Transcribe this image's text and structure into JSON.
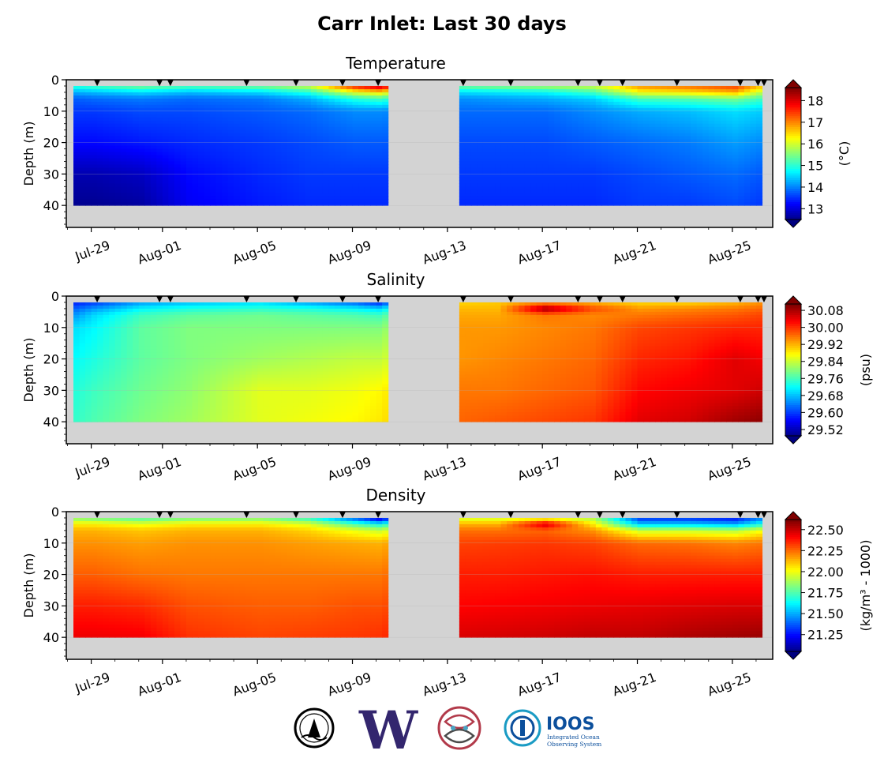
{
  "title": "Carr Inlet: Last 30 days",
  "chart_data": [
    {
      "type": "heatmap",
      "title": "Temperature",
      "ylabel": "Depth (m)",
      "colorbar_label": "(°C)",
      "colorbar_ticks": [
        "18",
        "17",
        "16",
        "15",
        "14",
        "13"
      ],
      "colorbar_range": [
        12.5,
        18.6
      ],
      "colormap": "jet",
      "x_ticks": [
        "Jul-29",
        "Aug-01",
        "Aug-05",
        "Aug-09",
        "Aug-13",
        "Aug-17",
        "Aug-21",
        "Aug-25"
      ],
      "y_ticks": [
        "0",
        "10",
        "20",
        "30",
        "40"
      ],
      "ylim": [
        47,
        0
      ],
      "data_gap": [
        "Aug-10 12:00",
        "Aug-13 07:00"
      ],
      "data_depth_range_m": [
        2,
        40
      ],
      "profiles": {
        "depths_m": [
          2,
          4,
          6,
          10,
          20,
          30,
          40
        ],
        "days": [
          "Jul-28",
          "Jul-29",
          "Jul-31",
          "Aug-02",
          "Aug-05",
          "Aug-07",
          "Aug-09",
          "Aug-10",
          "Aug-13",
          "Aug-15",
          "Aug-17",
          "Aug-19",
          "Aug-21",
          "Aug-23",
          "Aug-25",
          "Aug-26"
        ],
        "values": [
          [
            15.0,
            14.3,
            13.8,
            13.6,
            13.3,
            12.8,
            12.6
          ],
          [
            15.2,
            14.4,
            13.9,
            13.6,
            13.3,
            12.8,
            12.6
          ],
          [
            15.5,
            14.6,
            14.0,
            13.7,
            13.4,
            12.9,
            12.7
          ],
          [
            15.3,
            14.4,
            13.9,
            13.7,
            13.5,
            13.3,
            13.2
          ],
          [
            15.5,
            14.6,
            14.0,
            13.8,
            13.6,
            13.5,
            13.4
          ],
          [
            16.0,
            15.0,
            14.3,
            13.9,
            13.7,
            13.6,
            13.5
          ],
          [
            17.8,
            16.2,
            15.0,
            14.1,
            13.8,
            13.6,
            13.5
          ],
          [
            18.3,
            16.5,
            15.2,
            14.1,
            13.8,
            13.6,
            13.5
          ],
          [
            15.4,
            14.6,
            14.1,
            13.9,
            13.7,
            13.6,
            13.5
          ],
          [
            15.6,
            14.7,
            14.2,
            13.9,
            13.7,
            13.6,
            13.5
          ],
          [
            15.8,
            14.8,
            14.3,
            13.9,
            13.7,
            13.6,
            13.5
          ],
          [
            16.0,
            15.2,
            14.5,
            14.1,
            13.8,
            13.6,
            13.5
          ],
          [
            17.0,
            16.3,
            15.2,
            14.3,
            13.9,
            13.7,
            13.6
          ],
          [
            17.2,
            16.5,
            15.3,
            14.4,
            14.0,
            13.8,
            13.6
          ],
          [
            17.5,
            16.8,
            15.5,
            14.6,
            14.2,
            13.9,
            13.7
          ],
          [
            16.8,
            16.0,
            15.2,
            14.5,
            14.1,
            13.8,
            13.6
          ]
        ]
      }
    },
    {
      "type": "heatmap",
      "title": "Salinity",
      "ylabel": "Depth (m)",
      "colorbar_label": "(psu)",
      "colorbar_ticks": [
        "30.08",
        "30.00",
        "29.92",
        "29.84",
        "29.76",
        "29.68",
        "29.60",
        "29.52"
      ],
      "colorbar_range": [
        29.49,
        30.11
      ],
      "colormap": "jet",
      "x_ticks": [
        "Jul-29",
        "Aug-01",
        "Aug-05",
        "Aug-09",
        "Aug-13",
        "Aug-17",
        "Aug-21",
        "Aug-25"
      ],
      "y_ticks": [
        "0",
        "10",
        "20",
        "30",
        "40"
      ],
      "ylim": [
        47,
        0
      ],
      "data_gap": [
        "Aug-10 12:00",
        "Aug-13 07:00"
      ],
      "data_depth_range_m": [
        2,
        40
      ],
      "profiles": {
        "depths_m": [
          2,
          4,
          6,
          10,
          20,
          30,
          40
        ],
        "days": [
          "Jul-28",
          "Jul-29",
          "Jul-31",
          "Aug-02",
          "Aug-05",
          "Aug-07",
          "Aug-09",
          "Aug-10",
          "Aug-13",
          "Aug-15",
          "Aug-17",
          "Aug-19",
          "Aug-21",
          "Aug-23",
          "Aug-25",
          "Aug-26"
        ],
        "values": [
          [
            29.58,
            29.62,
            29.65,
            29.7,
            29.72,
            29.74,
            29.75
          ],
          [
            29.6,
            29.66,
            29.7,
            29.72,
            29.74,
            29.76,
            29.77
          ],
          [
            29.66,
            29.72,
            29.76,
            29.78,
            29.78,
            29.79,
            29.8
          ],
          [
            29.68,
            29.74,
            29.78,
            29.8,
            29.8,
            29.81,
            29.82
          ],
          [
            29.7,
            29.75,
            29.79,
            29.8,
            29.82,
            29.86,
            29.86
          ],
          [
            29.66,
            29.74,
            29.78,
            29.8,
            29.83,
            29.86,
            29.87
          ],
          [
            29.62,
            29.72,
            29.77,
            29.8,
            29.84,
            29.87,
            29.88
          ],
          [
            29.58,
            29.7,
            29.76,
            29.8,
            29.84,
            29.88,
            29.89
          ],
          [
            29.9,
            29.92,
            29.93,
            29.94,
            29.94,
            29.96,
            29.97
          ],
          [
            29.91,
            29.92,
            29.93,
            29.94,
            29.95,
            29.96,
            29.98
          ],
          [
            29.93,
            30.1,
            29.96,
            29.95,
            29.96,
            29.97,
            29.99
          ],
          [
            29.92,
            29.99,
            29.95,
            29.96,
            29.97,
            29.98,
            30.0
          ],
          [
            29.9,
            29.94,
            29.96,
            29.99,
            30.01,
            30.03,
            30.05
          ],
          [
            29.9,
            29.95,
            29.97,
            30.0,
            30.02,
            30.04,
            30.06
          ],
          [
            29.92,
            29.96,
            29.98,
            30.01,
            30.05,
            30.05,
            30.09
          ],
          [
            29.94,
            29.97,
            29.99,
            30.01,
            30.04,
            30.06,
            30.1
          ]
        ]
      }
    },
    {
      "type": "heatmap",
      "title": "Density",
      "ylabel": "Depth (m)",
      "colorbar_label": "(kg/m³ - 1000)",
      "colorbar_ticks": [
        "22.50",
        "22.25",
        "22.00",
        "21.75",
        "21.50",
        "21.25"
      ],
      "colorbar_range": [
        21.05,
        22.62
      ],
      "colormap": "jet",
      "x_ticks": [
        "Jul-29",
        "Aug-01",
        "Aug-05",
        "Aug-09",
        "Aug-13",
        "Aug-17",
        "Aug-21",
        "Aug-25"
      ],
      "y_ticks": [
        "0",
        "10",
        "20",
        "30",
        "40"
      ],
      "ylim": [
        47,
        0
      ],
      "data_gap": [
        "Aug-10 12:00",
        "Aug-13 07:00"
      ],
      "data_depth_range_m": [
        2,
        40
      ],
      "profiles": {
        "depths_m": [
          2,
          4,
          6,
          10,
          20,
          30,
          40
        ],
        "days": [
          "Jul-28",
          "Jul-29",
          "Jul-31",
          "Aug-02",
          "Aug-05",
          "Aug-07",
          "Aug-09",
          "Aug-10",
          "Aug-13",
          "Aug-15",
          "Aug-17",
          "Aug-19",
          "Aug-21",
          "Aug-23",
          "Aug-25",
          "Aug-26"
        ],
        "values": [
          [
            21.85,
            22.05,
            22.15,
            22.2,
            22.28,
            22.38,
            22.45
          ],
          [
            21.8,
            22.05,
            22.15,
            22.2,
            22.28,
            22.38,
            22.45
          ],
          [
            21.75,
            22.0,
            22.12,
            22.18,
            22.25,
            22.36,
            22.44
          ],
          [
            21.8,
            22.05,
            22.15,
            22.2,
            22.24,
            22.3,
            22.35
          ],
          [
            21.82,
            22.05,
            22.15,
            22.2,
            22.24,
            22.28,
            22.32
          ],
          [
            21.7,
            21.98,
            22.1,
            22.18,
            22.24,
            22.28,
            22.33
          ],
          [
            21.35,
            21.75,
            22.0,
            22.16,
            22.24,
            22.3,
            22.34
          ],
          [
            21.15,
            21.65,
            21.95,
            22.15,
            22.24,
            22.3,
            22.35
          ],
          [
            21.95,
            22.15,
            22.25,
            22.32,
            22.38,
            22.42,
            22.48
          ],
          [
            21.95,
            22.15,
            22.25,
            22.33,
            22.38,
            22.43,
            22.49
          ],
          [
            21.95,
            22.5,
            22.27,
            22.34,
            22.39,
            22.44,
            22.5
          ],
          [
            21.9,
            22.05,
            22.2,
            22.32,
            22.4,
            22.45,
            22.52
          ],
          [
            21.3,
            21.55,
            21.95,
            22.26,
            22.38,
            22.46,
            22.52
          ],
          [
            21.3,
            21.55,
            21.95,
            22.25,
            22.38,
            22.47,
            22.55
          ],
          [
            21.25,
            21.5,
            21.92,
            22.22,
            22.38,
            22.48,
            22.57
          ],
          [
            21.4,
            21.65,
            22.0,
            22.24,
            22.38,
            22.48,
            22.58
          ]
        ]
      }
    }
  ],
  "logos": {
    "logo_1": "ORCA seal",
    "logo_2": "W",
    "logo_3": "NANOOS emblem",
    "logo_4_text": "IOOS",
    "logo_4_sub_1": "Integrated Ocean",
    "logo_4_sub_2": "Observing System"
  },
  "colors": {
    "no_data": "#d3d3d3",
    "uw_purple": "#33266e",
    "ioos_blue": "#0b4f9c",
    "nanoos_red": "#b23a4a"
  }
}
